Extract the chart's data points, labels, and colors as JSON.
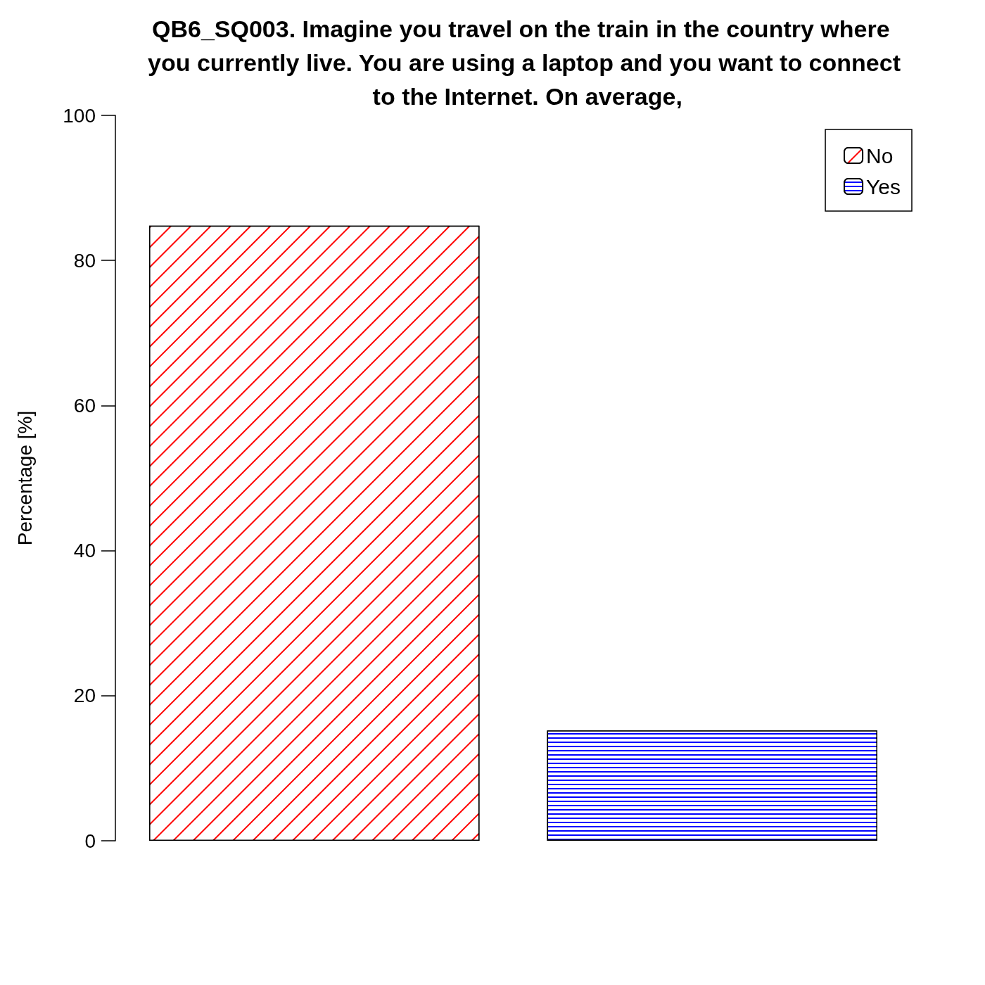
{
  "chart_data": {
    "type": "bar",
    "title": "QB6_SQ003. Imagine you travel on the train in the country where you currently live. You are using a laptop and you want to connect to the Internet. On average,",
    "ylabel": "Percentage [%]",
    "categories": [
      null,
      null
    ],
    "series": [
      {
        "name": "No",
        "color": "#ff0000",
        "values": [
          84.8,
          null
        ]
      },
      {
        "name": "Yes",
        "color": "#0000ff",
        "values": [
          null,
          15.2
        ]
      }
    ],
    "ylim": [
      0,
      100
    ],
    "yticks": [
      0,
      20,
      40,
      60,
      80,
      100
    ],
    "grid": false,
    "stacked": true,
    "legend": "top right"
  }
}
